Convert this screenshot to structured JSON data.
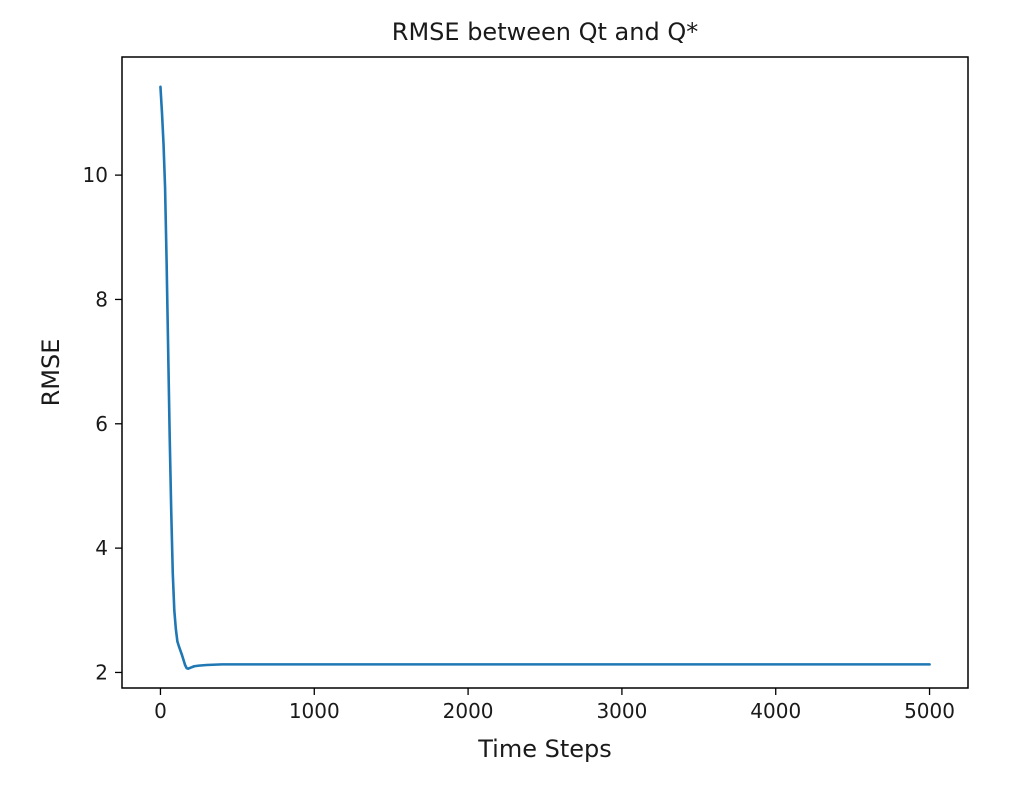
{
  "chart_data": {
    "type": "line",
    "title": "RMSE between Qt and Q*",
    "xlabel": "Time Steps",
    "ylabel": "RMSE",
    "xlim": [
      -250,
      5250
    ],
    "ylim": [
      1.75,
      11.9
    ],
    "xticks": [
      0,
      1000,
      2000,
      3000,
      4000,
      5000
    ],
    "yticks": [
      2,
      4,
      6,
      8,
      10
    ],
    "xtick_labels": [
      "0",
      "1000",
      "2000",
      "3000",
      "4000",
      "5000"
    ],
    "ytick_labels": [
      "2",
      "4",
      "6",
      "8",
      "10"
    ],
    "grid": false,
    "series": [
      {
        "color": "#1f77b4",
        "x": [
          0,
          10,
          20,
          30,
          40,
          50,
          60,
          70,
          80,
          90,
          100,
          110,
          120,
          130,
          140,
          150,
          160,
          170,
          180,
          200,
          220,
          250,
          300,
          400,
          500,
          700,
          1000,
          1500,
          2000,
          2500,
          3000,
          3500,
          4000,
          4500,
          5000
        ],
        "y": [
          11.42,
          11.0,
          10.5,
          9.8,
          8.6,
          7.2,
          5.8,
          4.6,
          3.6,
          3.0,
          2.7,
          2.5,
          2.42,
          2.35,
          2.28,
          2.2,
          2.12,
          2.07,
          2.06,
          2.08,
          2.1,
          2.11,
          2.12,
          2.13,
          2.13,
          2.13,
          2.13,
          2.13,
          2.13,
          2.13,
          2.13,
          2.13,
          2.13,
          2.13,
          2.13
        ]
      }
    ]
  }
}
